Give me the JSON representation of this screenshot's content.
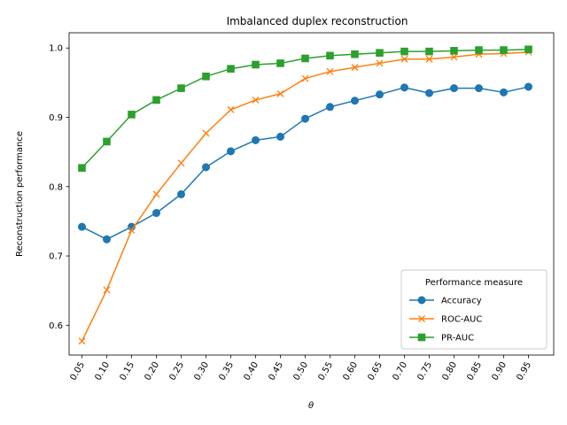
{
  "chart_data": {
    "type": "line",
    "title": "Imbalanced duplex reconstruction",
    "xlabel": "θ",
    "ylabel": "Reconstruction performance",
    "x": [
      "0.05",
      "0.10",
      "0.15",
      "0.20",
      "0.25",
      "0.30",
      "0.35",
      "0.40",
      "0.45",
      "0.50",
      "0.55",
      "0.60",
      "0.65",
      "0.70",
      "0.75",
      "0.80",
      "0.85",
      "0.90",
      "0.95"
    ],
    "ylim": [
      0.557,
      1.022
    ],
    "yticks": [
      "0.6",
      "0.7",
      "0.8",
      "0.9",
      "1.0"
    ],
    "grid": false,
    "legend": {
      "title": "Performance measure",
      "placement": "lower-right"
    },
    "series": [
      {
        "name": "Accuracy",
        "color": "#1f77b4",
        "marker": "circle",
        "values": [
          0.742,
          0.724,
          0.742,
          0.762,
          0.789,
          0.828,
          0.851,
          0.867,
          0.872,
          0.898,
          0.915,
          0.924,
          0.933,
          0.943,
          0.935,
          0.942,
          0.942,
          0.936,
          0.944
        ]
      },
      {
        "name": "ROC-AUC",
        "color": "#ff7f0e",
        "marker": "x",
        "values": [
          0.577,
          0.651,
          0.737,
          0.789,
          0.834,
          0.877,
          0.911,
          0.925,
          0.934,
          0.956,
          0.966,
          0.972,
          0.978,
          0.984,
          0.984,
          0.987,
          0.991,
          0.992,
          0.994
        ]
      },
      {
        "name": "PR-AUC",
        "color": "#2ca02c",
        "marker": "square",
        "values": [
          0.827,
          0.865,
          0.904,
          0.925,
          0.942,
          0.959,
          0.97,
          0.976,
          0.978,
          0.985,
          0.989,
          0.991,
          0.993,
          0.995,
          0.995,
          0.996,
          0.997,
          0.997,
          0.998
        ]
      }
    ]
  }
}
